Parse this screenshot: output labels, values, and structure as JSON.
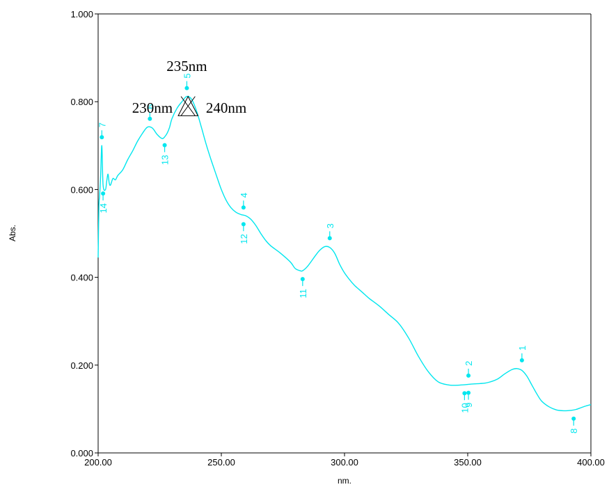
{
  "chart_data": {
    "type": "line",
    "title": "",
    "xlabel": "nm.",
    "ylabel": "Abs.",
    "xlim": [
      200,
      400
    ],
    "ylim": [
      0,
      1
    ],
    "x_ticks": [
      {
        "value": 200,
        "label": "200.00"
      },
      {
        "value": 250,
        "label": "250.00"
      },
      {
        "value": 300,
        "label": "300.00"
      },
      {
        "value": 350,
        "label": "350.00"
      },
      {
        "value": 400,
        "label": "400.00"
      }
    ],
    "y_ticks": [
      {
        "value": 0,
        "label": "0.000"
      },
      {
        "value": 0.2,
        "label": "0.200"
      },
      {
        "value": 0.4,
        "label": "0.400"
      },
      {
        "value": 0.6,
        "label": "0.600"
      },
      {
        "value": 0.8,
        "label": "0.800"
      },
      {
        "value": 1.0,
        "label": "1.000"
      }
    ],
    "grid": false,
    "line_color": "#00e6ee",
    "series": [
      {
        "x": [
          200,
          200.3,
          200.6,
          201,
          201.5,
          202,
          203,
          203.5,
          204,
          204.5,
          205,
          206,
          207,
          208,
          210,
          212,
          214,
          216,
          218,
          220,
          222,
          224,
          226,
          227,
          228,
          229,
          230,
          232,
          234,
          236,
          238,
          240,
          242,
          244,
          246,
          248,
          250,
          252,
          254,
          256,
          258,
          260,
          262,
          264,
          266,
          268,
          270,
          274,
          278,
          280,
          282,
          283,
          285,
          288,
          290,
          292,
          294,
          296,
          298,
          300,
          302,
          304,
          306,
          308,
          310,
          314,
          318,
          322,
          326,
          330,
          334,
          338,
          342,
          345,
          348,
          350,
          352,
          355,
          358,
          362,
          365,
          368,
          370,
          372,
          374,
          376,
          378,
          380,
          383,
          386,
          389,
          392,
          394,
          396,
          398,
          400
        ],
        "y": [
          0.445,
          0.56,
          0.585,
          0.628,
          0.7,
          0.61,
          0.6,
          0.62,
          0.635,
          0.615,
          0.61,
          0.625,
          0.622,
          0.632,
          0.645,
          0.668,
          0.688,
          0.71,
          0.728,
          0.742,
          0.74,
          0.725,
          0.716,
          0.72,
          0.728,
          0.742,
          0.762,
          0.785,
          0.8,
          0.812,
          0.805,
          0.778,
          0.74,
          0.7,
          0.665,
          0.632,
          0.6,
          0.575,
          0.558,
          0.548,
          0.543,
          0.54,
          0.532,
          0.518,
          0.5,
          0.484,
          0.472,
          0.455,
          0.435,
          0.42,
          0.415,
          0.415,
          0.425,
          0.448,
          0.462,
          0.47,
          0.468,
          0.455,
          0.43,
          0.41,
          0.395,
          0.382,
          0.372,
          0.362,
          0.352,
          0.335,
          0.315,
          0.295,
          0.262,
          0.22,
          0.185,
          0.162,
          0.155,
          0.154,
          0.155,
          0.156,
          0.157,
          0.158,
          0.16,
          0.168,
          0.18,
          0.19,
          0.192,
          0.188,
          0.175,
          0.155,
          0.135,
          0.118,
          0.105,
          0.098,
          0.096,
          0.097,
          0.099,
          0.103,
          0.107,
          0.11
        ]
      }
    ],
    "peak_markers": [
      {
        "label": "1",
        "x": 372,
        "y": 0.192,
        "dir": "up"
      },
      {
        "label": "2",
        "x": 350.3,
        "y": 0.157,
        "dir": "up"
      },
      {
        "label": "3",
        "x": 294,
        "y": 0.47,
        "dir": "up"
      },
      {
        "label": "4",
        "x": 259,
        "y": 0.54,
        "dir": "up"
      },
      {
        "label": "5",
        "x": 236,
        "y": 0.812,
        "dir": "up"
      },
      {
        "label": "6",
        "x": 221,
        "y": 0.742,
        "dir": "up"
      },
      {
        "label": "7",
        "x": 201.5,
        "y": 0.7,
        "dir": "up"
      },
      {
        "label": "8",
        "x": 393,
        "y": 0.097,
        "dir": "down"
      },
      {
        "label": "9",
        "x": 350.3,
        "y": 0.156,
        "dir": "down"
      },
      {
        "label": "10",
        "x": 348.7,
        "y": 0.155,
        "dir": "down"
      },
      {
        "label": "11",
        "x": 283,
        "y": 0.415,
        "dir": "down"
      },
      {
        "label": "12",
        "x": 259,
        "y": 0.54,
        "dir": "down"
      },
      {
        "label": "13",
        "x": 227,
        "y": 0.72,
        "dir": "down"
      },
      {
        "label": "14",
        "x": 202,
        "y": 0.61,
        "dir": "down"
      }
    ],
    "annotations": [
      {
        "text": "235nm",
        "x": 236,
        "y": 0.87
      },
      {
        "text": "230nm",
        "x": 222,
        "y": 0.775
      },
      {
        "text": "240nm",
        "x": 252,
        "y": 0.775
      }
    ],
    "triangle": {
      "x_left": 232.5,
      "x_right": 240.5,
      "y_base": 0.768,
      "x_apex": 236.5,
      "y_apex": 0.812
    }
  }
}
